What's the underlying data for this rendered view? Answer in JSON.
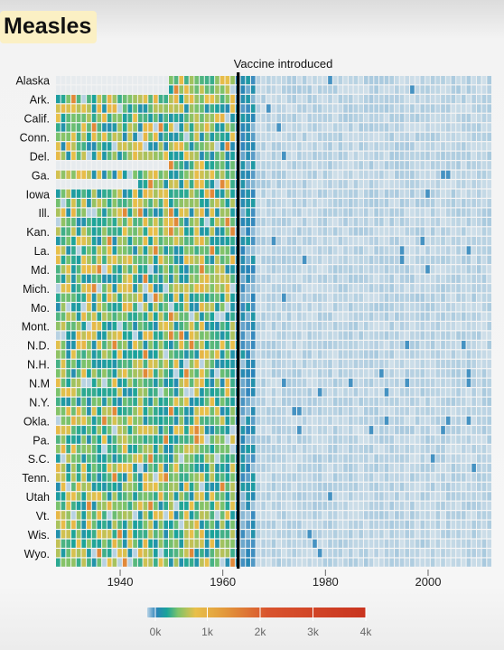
{
  "title": "Measles",
  "chart_data": {
    "type": "heatmap",
    "title": "Measles",
    "annotation": {
      "text": "Vaccine introduced",
      "year": 1963
    },
    "x_range": [
      1928,
      2012
    ],
    "x_ticks": [
      1940,
      1960,
      1980,
      2000
    ],
    "row_labels": [
      "Alaska",
      "Ark.",
      "Calif.",
      "Conn.",
      "Del.",
      "Ga.",
      "Iowa",
      "Ill.",
      "Kan.",
      "La.",
      "Md.",
      "Mich.",
      "Mo.",
      "Mont.",
      "N.D.",
      "N.H.",
      "N.M",
      "N.Y.",
      "Okla.",
      "Pa.",
      "S.C.",
      "Tenn.",
      "Utah",
      "Vt.",
      "Wis.",
      "Wyo."
    ],
    "color_scale": {
      "stops": [
        "#cfdfe9",
        "#2b83ba",
        "#1aa39a",
        "#7cc36b",
        "#e8c04a",
        "#e39a3c",
        "#d9542e",
        "#c9341f"
      ],
      "tick_values": [
        0,
        1000,
        2000,
        3000,
        4000
      ],
      "tick_labels": [
        "0k",
        "1k",
        "2k",
        "3k",
        "4k"
      ]
    }
  }
}
